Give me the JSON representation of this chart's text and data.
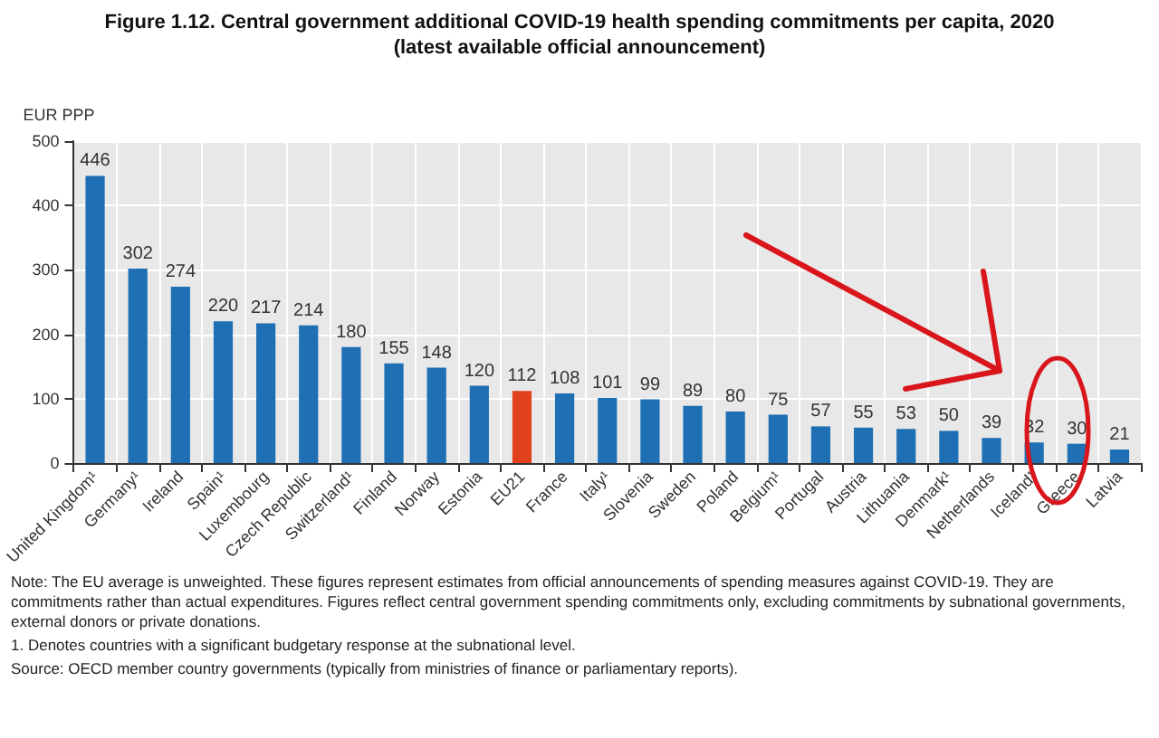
{
  "chart_data": {
    "type": "bar",
    "title": "Figure 1.12. Central government additional COVID-19 health spending commitments per capita, 2020",
    "subtitle": "(latest available official announcement)",
    "ylabel": "EUR PPP",
    "categories": [
      "United Kingdom¹",
      "Germany¹",
      "Ireland",
      "Spain¹",
      "Luxembourg",
      "Czech Republic",
      "Switzerland¹",
      "Finland",
      "Norway",
      "Estonia",
      "EU21",
      "France",
      "Italy¹",
      "Slovenia",
      "Sweden",
      "Poland",
      "Belgium¹",
      "Portugal",
      "Austria",
      "Lithuania",
      "Denmark¹",
      "Netherlands",
      "Iceland¹",
      "Greece",
      "Latvia"
    ],
    "values": [
      446,
      302,
      274,
      220,
      217,
      214,
      180,
      155,
      148,
      120,
      112,
      108,
      101,
      99,
      89,
      80,
      75,
      57,
      55,
      53,
      50,
      39,
      32,
      30,
      21
    ],
    "colors": [
      "#1f6fb4",
      "#1f6fb4",
      "#1f6fb4",
      "#1f6fb4",
      "#1f6fb4",
      "#1f6fb4",
      "#1f6fb4",
      "#1f6fb4",
      "#1f6fb4",
      "#1f6fb4",
      "#e2421b",
      "#1f6fb4",
      "#1f6fb4",
      "#1f6fb4",
      "#1f6fb4",
      "#1f6fb4",
      "#1f6fb4",
      "#1f6fb4",
      "#1f6fb4",
      "#1f6fb4",
      "#1f6fb4",
      "#1f6fb4",
      "#1f6fb4",
      "#1f6fb4",
      "#1f6fb4"
    ],
    "ylim": [
      0,
      500
    ],
    "yticks": [
      0,
      100,
      200,
      300,
      400,
      500
    ],
    "grid": true,
    "data_labels": true,
    "annotations": [
      "Note: The EU average is unweighted. These figures represent estimates from official announcements of spending measures against COVID-19. They are commitments rather than actual expenditures. Figures reflect central government spending commitments only, excluding commitments by subnational governments, external donors or private donations.",
      "1. Denotes countries with a significant budgetary response at the subnational level.",
      "Source: OECD member country governments (typically from ministries of finance or parliamentary reports)."
    ]
  }
}
